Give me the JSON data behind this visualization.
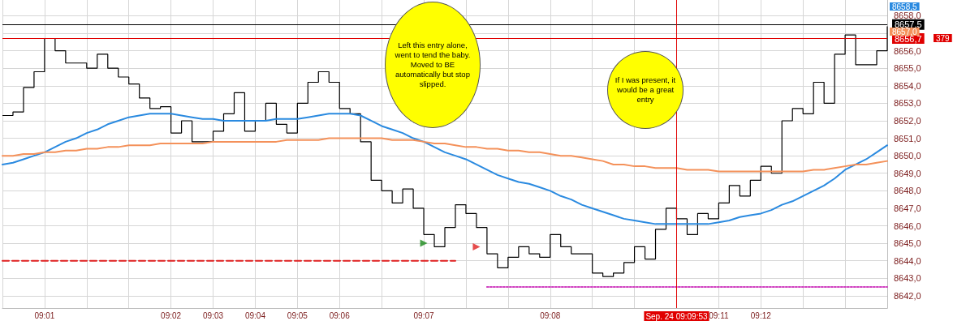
{
  "chart_data": {
    "type": "line",
    "categories": [
      null,
      null,
      null,
      null,
      "09:01",
      null,
      null,
      null,
      null,
      null,
      null,
      null,
      null,
      null,
      null,
      null,
      "09:02",
      null,
      null,
      null,
      "09:03",
      null,
      null,
      null,
      "09:04",
      null,
      null,
      null,
      "09:05",
      null,
      null,
      null,
      "09:06",
      null,
      null,
      null,
      null,
      null,
      null,
      null,
      "09:07",
      null,
      null,
      null,
      null,
      null,
      null,
      null,
      null,
      null,
      null,
      null,
      "09:08",
      null,
      null,
      null,
      null,
      null,
      null,
      null,
      null,
      null,
      null,
      null,
      "Sep. 24 09:09:53",
      null,
      null,
      null,
      "09:11",
      null,
      null,
      null,
      "09:12",
      null,
      null,
      null,
      null,
      null,
      null,
      null,
      null,
      null,
      null,
      null,
      null
    ],
    "series": [
      {
        "type": "step",
        "color": "#000000",
        "values": [
          8652.3,
          8652.5,
          8653.9,
          8654.8,
          8656.7,
          8656.0,
          8655.3,
          8655.3,
          8655.0,
          8655.8,
          8655.0,
          8654.5,
          8654.1,
          8653.3,
          8652.7,
          8652.8,
          8651.3,
          8652.0,
          8650.8,
          8650.8,
          8651.4,
          8652.4,
          8653.6,
          8651.4,
          8652.0,
          8653.0,
          8651.8,
          8651.3,
          8653.0,
          8654.2,
          8654.8,
          8654.2,
          8652.7,
          8652.4,
          8650.8,
          8648.6,
          8648.0,
          8647.3,
          8648.1,
          8647.0,
          8645.5,
          8644.8,
          8645.9,
          8647.2,
          8646.7,
          8645.9,
          8644.4,
          8643.6,
          8644.2,
          8644.8,
          8644.4,
          8644.2,
          8645.5,
          8644.8,
          8644.4,
          8644.4,
          8643.3,
          8643.1,
          8643.3,
          8643.9,
          8644.8,
          8644.1,
          8645.8,
          8647.0,
          8646.4,
          8645.5,
          8646.7,
          8646.4,
          8647.3,
          8648.3,
          8647.7,
          8648.6,
          8649.4,
          8649.0,
          8652.0,
          8652.7,
          8652.4,
          8654.2,
          8653.0,
          8655.8,
          8656.9,
          8655.2,
          8655.2,
          8656.0,
          8657.4
        ]
      },
      {
        "type": "line",
        "color": "#2a8ae0",
        "values": [
          8649.5,
          8649.6,
          8649.8,
          8650.0,
          8650.2,
          8650.5,
          8650.8,
          8651.0,
          8651.3,
          8651.5,
          8651.8,
          8652.0,
          8652.2,
          8652.3,
          8652.4,
          8652.4,
          8652.4,
          8652.3,
          8652.2,
          8652.1,
          8652.1,
          8652.0,
          8652.0,
          8652.0,
          8652.0,
          8652.0,
          8652.1,
          8652.1,
          8652.1,
          8652.2,
          8652.3,
          8652.4,
          8652.4,
          8652.4,
          8652.3,
          8652.0,
          8651.7,
          8651.5,
          8651.3,
          8651.0,
          8650.8,
          8650.5,
          8650.2,
          8650.0,
          8649.8,
          8649.5,
          8649.2,
          8648.9,
          8648.7,
          8648.5,
          8648.4,
          8648.2,
          8648.0,
          8647.7,
          8647.5,
          8647.2,
          8647.0,
          8646.8,
          8646.6,
          8646.4,
          8646.3,
          8646.2,
          8646.1,
          8646.1,
          8646.1,
          8646.1,
          8646.1,
          8646.1,
          8646.2,
          8646.3,
          8646.5,
          8646.6,
          8646.7,
          8646.9,
          8647.2,
          8647.4,
          8647.7,
          8648.0,
          8648.3,
          8648.7,
          8649.2,
          8649.5,
          8649.8,
          8650.2,
          8650.6
        ]
      },
      {
        "type": "line",
        "color": "#f4915a",
        "values": [
          8650.0,
          8650.0,
          8650.1,
          8650.1,
          8650.2,
          8650.2,
          8650.3,
          8650.3,
          8650.4,
          8650.4,
          8650.5,
          8650.5,
          8650.6,
          8650.6,
          8650.6,
          8650.7,
          8650.7,
          8650.7,
          8650.7,
          8650.7,
          8650.8,
          8650.8,
          8650.8,
          8650.8,
          8650.8,
          8650.8,
          8650.8,
          8650.9,
          8650.9,
          8650.9,
          8650.9,
          8651.0,
          8651.0,
          8651.0,
          8651.0,
          8651.0,
          8651.0,
          8650.9,
          8650.9,
          8650.9,
          8650.8,
          8650.7,
          8650.7,
          8650.6,
          8650.5,
          8650.5,
          8650.4,
          8650.4,
          8650.3,
          8650.3,
          8650.2,
          8650.2,
          8650.1,
          8650.0,
          8650.0,
          8649.9,
          8649.8,
          8649.7,
          8649.5,
          8649.5,
          8649.4,
          8649.4,
          8649.3,
          8649.3,
          8649.3,
          8649.2,
          8649.2,
          8649.2,
          8649.1,
          8649.1,
          8649.1,
          8649.1,
          8649.1,
          8649.1,
          8649.1,
          8649.1,
          8649.1,
          8649.2,
          8649.2,
          8649.3,
          8649.4,
          8649.5,
          8649.5,
          8649.6,
          8649.7
        ]
      },
      {
        "type": "line",
        "color": "#e02020",
        "line_style": "dashed",
        "values": [
          8644.0,
          8644.0,
          8644.0,
          8644.0,
          8644.0,
          8644.0,
          8644.0,
          8644.0,
          8644.0,
          8644.0,
          8644.0,
          8644.0,
          8644.0,
          8644.0,
          8644.0,
          8644.0,
          8644.0,
          8644.0,
          8644.0,
          8644.0,
          8644.0,
          8644.0,
          8644.0,
          8644.0,
          8644.0,
          8644.0,
          8644.0,
          8644.0,
          8644.0,
          8644.0,
          8644.0,
          8644.0,
          8644.0,
          8644.0,
          8644.0,
          8644.0,
          8644.0,
          8644.0,
          8644.0,
          8644.0,
          8644.0,
          8644.0,
          8644.0,
          8644.0,
          null,
          null,
          null,
          null,
          null,
          null,
          null,
          null,
          null,
          null,
          null,
          null,
          null,
          null,
          null,
          null,
          null,
          null,
          null,
          null,
          null,
          null,
          null,
          null,
          null,
          null,
          null,
          null,
          null,
          null,
          null,
          null,
          null,
          null,
          null,
          null,
          null,
          null,
          null,
          null,
          null
        ]
      },
      {
        "type": "line",
        "color": "#d040c0",
        "line_style": "dotted",
        "values": [
          null,
          null,
          null,
          null,
          null,
          null,
          null,
          null,
          null,
          null,
          null,
          null,
          null,
          null,
          null,
          null,
          null,
          null,
          null,
          null,
          null,
          null,
          null,
          null,
          null,
          null,
          null,
          null,
          null,
          null,
          null,
          null,
          null,
          null,
          null,
          null,
          null,
          null,
          null,
          null,
          null,
          null,
          null,
          null,
          null,
          null,
          8642.5,
          8642.5,
          8642.5,
          8642.5,
          8642.5,
          8642.5,
          8642.5,
          8642.5,
          8642.5,
          8642.5,
          8642.5,
          8642.5,
          8642.5,
          8642.5,
          8642.5,
          8642.5,
          8642.5,
          8642.5,
          8642.5,
          8642.5,
          8642.5,
          8642.5,
          8642.5,
          8642.5,
          8642.5,
          8642.5,
          8642.5,
          8642.5,
          8642.5,
          8642.5,
          8642.5,
          8642.5,
          8642.5,
          8642.5,
          8642.5,
          8642.5,
          8642.5,
          8642.5,
          8642.5
        ]
      },
      {
        "type": "scatter",
        "color": "#1a8a1a",
        "marker": "triangle",
        "values": [
          null,
          null,
          null,
          null,
          null,
          null,
          null,
          null,
          null,
          null,
          null,
          null,
          null,
          null,
          null,
          null,
          null,
          null,
          null,
          null,
          null,
          null,
          null,
          null,
          null,
          null,
          null,
          null,
          null,
          null,
          null,
          null,
          null,
          null,
          null,
          null,
          null,
          null,
          null,
          null,
          8645.0,
          null,
          null,
          null,
          null,
          null,
          null,
          null,
          null,
          null,
          null,
          null,
          null,
          null,
          null,
          null,
          null,
          null,
          null,
          null,
          null,
          null,
          null,
          null,
          null,
          null,
          null,
          null,
          null,
          null,
          null,
          null,
          null,
          null,
          null,
          null,
          null,
          null,
          null,
          null,
          null,
          null,
          null,
          null,
          null
        ]
      },
      {
        "type": "scatter",
        "color": "#e02020",
        "marker": "triangle",
        "values": [
          null,
          null,
          null,
          null,
          null,
          null,
          null,
          null,
          null,
          null,
          null,
          null,
          null,
          null,
          null,
          null,
          null,
          null,
          null,
          null,
          null,
          null,
          null,
          null,
          null,
          null,
          null,
          null,
          null,
          null,
          null,
          null,
          null,
          null,
          null,
          null,
          null,
          null,
          null,
          null,
          null,
          null,
          null,
          null,
          null,
          8644.8,
          null,
          null,
          null,
          null,
          null,
          null,
          null,
          null,
          null,
          null,
          null,
          null,
          null,
          null,
          null,
          null,
          null,
          null,
          null,
          null,
          null,
          null,
          null,
          null,
          null,
          null,
          null,
          null,
          null,
          null,
          null,
          null,
          null,
          null,
          null,
          null,
          null,
          null,
          null
        ]
      }
    ],
    "ylim": [
      8641.3,
      8658.9
    ],
    "yticks": [
      {
        "value": 8642,
        "label": "8642,0"
      },
      {
        "value": 8643,
        "label": "8643,0"
      },
      {
        "value": 8644,
        "label": "8644,0"
      },
      {
        "value": 8645,
        "label": "8645,0"
      },
      {
        "value": 8646,
        "label": "8646,0"
      },
      {
        "value": 8647,
        "label": "8647,0"
      },
      {
        "value": 8648,
        "label": "8648,0"
      },
      {
        "value": 8649,
        "label": "8649,0"
      },
      {
        "value": 8650,
        "label": "8650,0"
      },
      {
        "value": 8651,
        "label": "8651,0"
      },
      {
        "value": 8652,
        "label": "8652,0"
      },
      {
        "value": 8653,
        "label": "8653,0"
      },
      {
        "value": 8654,
        "label": "8654,0"
      },
      {
        "value": 8655,
        "label": "8655,0"
      },
      {
        "value": 8656,
        "label": "8656,0"
      },
      {
        "value": 8657,
        "label": null
      },
      {
        "value": 8658,
        "label": "8658,0"
      }
    ],
    "ref_lines": [
      {
        "axis": "y",
        "value": 8657.5,
        "label": "8657,5",
        "color": "#000000"
      },
      {
        "axis": "y",
        "value": 8656.7,
        "label": "8656,7",
        "color": "#e00000"
      },
      {
        "axis": "x",
        "value": "Sep. 24 09:09:53",
        "color": "#e00000"
      }
    ],
    "annotations": [
      "Left this entry alone, went to tend the baby.  Moved to BE automatically but stop slipped.",
      "If I was present, it would be a great entry",
      "8658,5",
      "8657,0",
      "379"
    ],
    "grid": true,
    "marker": "none"
  }
}
